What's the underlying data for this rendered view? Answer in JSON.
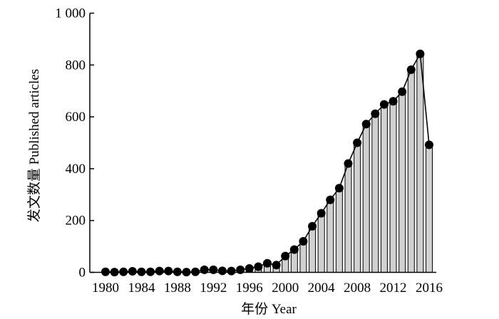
{
  "chart_data": {
    "type": "bar",
    "overlay": "line-with-markers",
    "ylabel": "发文数量 Published articles",
    "xlabel": "年份 Year",
    "ylim": [
      0,
      1000
    ],
    "yticks": [
      {
        "value": 0,
        "label": "0"
      },
      {
        "value": 200,
        "label": "200"
      },
      {
        "value": 400,
        "label": "400"
      },
      {
        "value": 600,
        "label": "600"
      },
      {
        "value": 800,
        "label": "800"
      },
      {
        "value": 1000,
        "label": "1 000"
      }
    ],
    "xtick_labels": [
      "1980",
      "1984",
      "1988",
      "1992",
      "1996",
      "2000",
      "2004",
      "2008",
      "2012",
      "2016"
    ],
    "x": [
      1980,
      1981,
      1982,
      1983,
      1984,
      1985,
      1986,
      1987,
      1988,
      1989,
      1990,
      1991,
      1992,
      1993,
      1994,
      1995,
      1996,
      1997,
      1998,
      1999,
      2000,
      2001,
      2002,
      2003,
      2004,
      2005,
      2006,
      2007,
      2008,
      2009,
      2010,
      2011,
      2012,
      2013,
      2014,
      2015,
      2016
    ],
    "values": [
      2,
      1,
      2,
      4,
      2,
      2,
      5,
      5,
      2,
      1,
      2,
      10,
      10,
      6,
      5,
      10,
      15,
      22,
      35,
      28,
      63,
      88,
      120,
      178,
      228,
      280,
      325,
      420,
      500,
      572,
      612,
      648,
      660,
      697,
      782,
      843,
      492
    ],
    "grid": false,
    "legend": "none",
    "colors": {
      "bar_fill": "#d0d0d0",
      "bar_stroke": "#000000",
      "line": "#000000",
      "marker": "#000000"
    }
  }
}
